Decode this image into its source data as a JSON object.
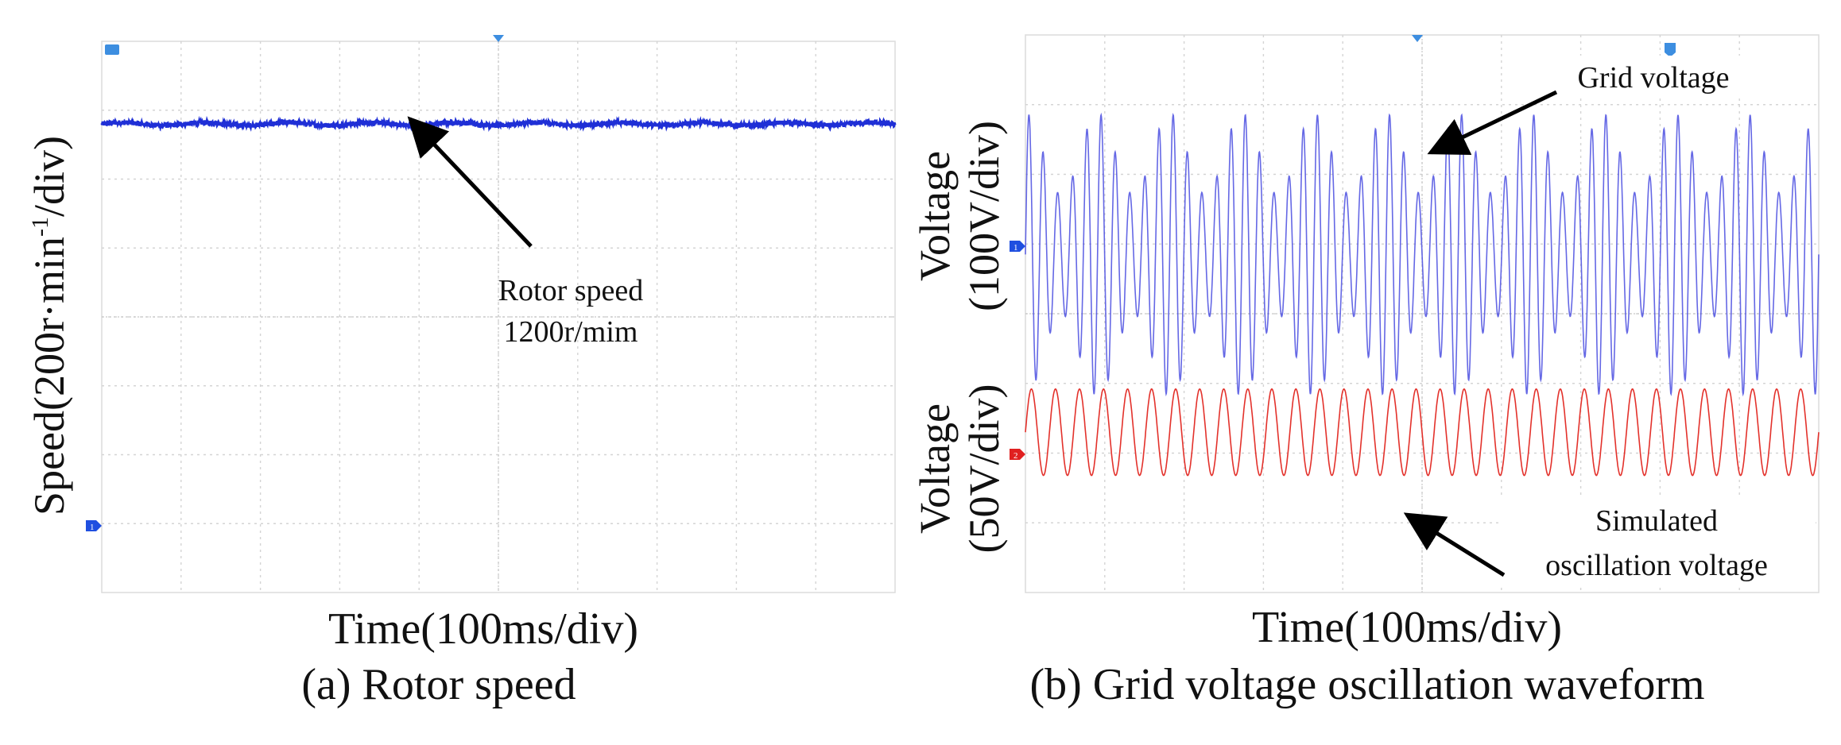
{
  "chart_data": [
    {
      "type": "line",
      "panel_caption": "(a) Rotor speed",
      "xlabel": "Time(100ms/div)",
      "ylabel_prefix": "Speed(200r·min",
      "ylabel_sup": "-1",
      "ylabel_suffix": "/div)",
      "x_divisions": 10,
      "y_divisions": 8,
      "xlim": [
        0,
        10
      ],
      "ylim": [
        0,
        8
      ],
      "grid": true,
      "series": [
        {
          "name": "Rotor speed",
          "color": "#1f2fd6",
          "kind": "flat",
          "level_div": 6.8,
          "noise_div": 0.035
        }
      ],
      "annotation_lines": [
        "Rotor speed",
        "1200r/mim"
      ],
      "channel_markers": [
        {
          "label": "1",
          "color": "#1f4fe0"
        }
      ]
    },
    {
      "type": "line",
      "panel_caption": "(b) Grid voltage oscillation waveform",
      "xlabel": "Time(100ms/div)",
      "ylabel_top_lines": [
        "Voltage",
        "(100V/div)"
      ],
      "ylabel_bottom_lines": [
        "Voltage",
        "(50V/div)"
      ],
      "x_divisions": 10,
      "y_divisions": 8,
      "xlim": [
        0,
        10
      ],
      "ylim": [
        0,
        8
      ],
      "grid": true,
      "series": [
        {
          "name": "Grid voltage",
          "color": "#4a4ee0",
          "kind": "am",
          "center_div": 4.85,
          "amp_div": 1.85,
          "cycles": 55,
          "mod_cycles": 11
        },
        {
          "name": "Simulated oscillation voltage",
          "color": "#e3312b",
          "kind": "sine",
          "center_div": 2.3,
          "amp_div": 0.62,
          "cycles": 33
        }
      ],
      "annotations": [
        {
          "lines": [
            "Grid voltage"
          ]
        },
        {
          "lines": [
            "Simulated",
            "oscillation voltage"
          ]
        }
      ],
      "channel_markers": [
        {
          "label": "1",
          "color": "#1f4fe0"
        },
        {
          "label": "2",
          "color": "#e02020"
        }
      ]
    }
  ]
}
